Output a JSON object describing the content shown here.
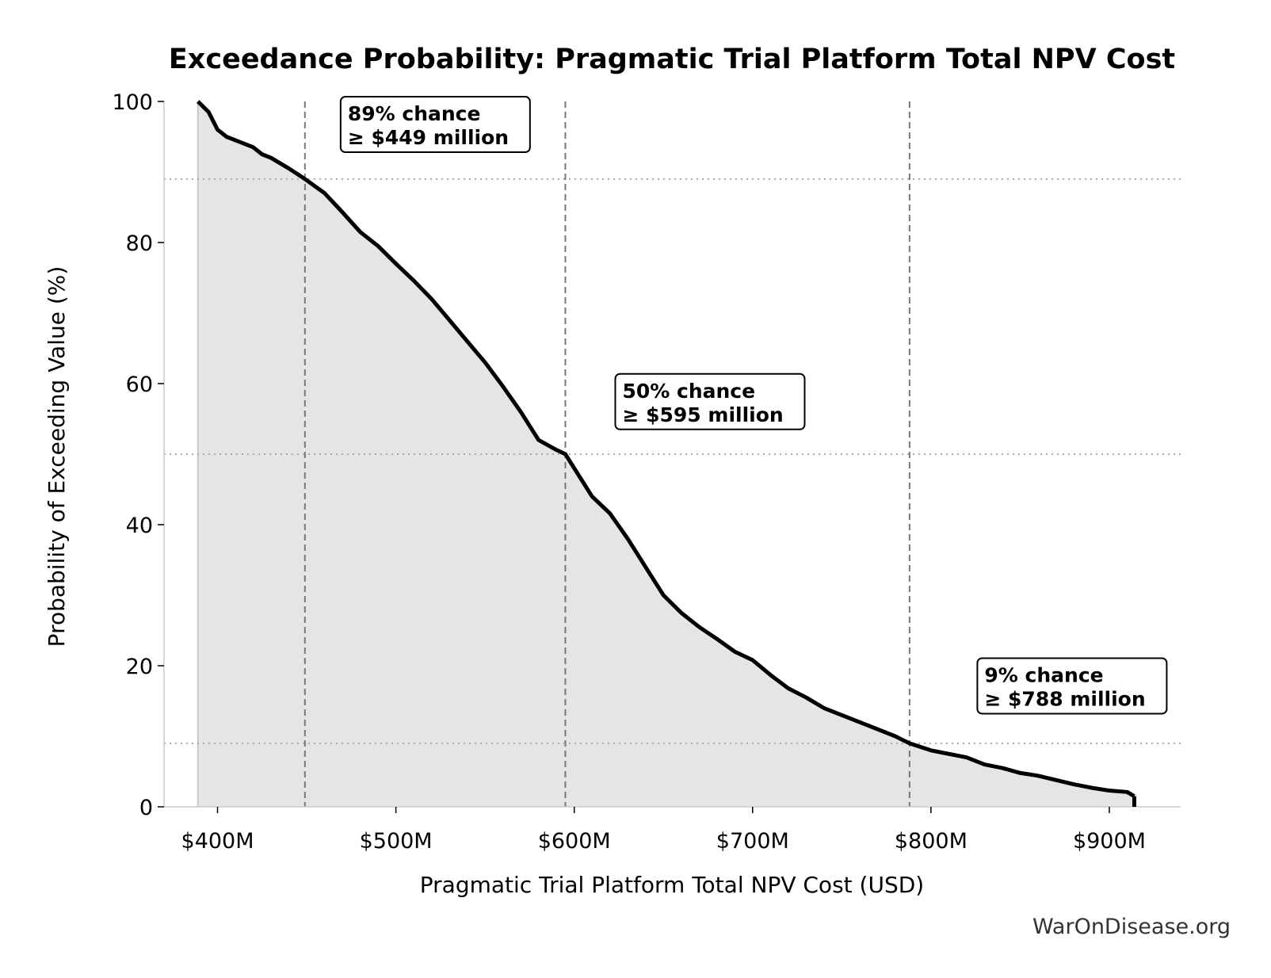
{
  "chart_data": {
    "type": "area",
    "title": "Exceedance Probability: Pragmatic Trial Platform Total NPV Cost",
    "xlabel": "Pragmatic Trial Platform Total NPV Cost (USD)",
    "ylabel": "Probability of Exceeding Value (%)",
    "xlim": [
      370,
      940
    ],
    "ylim": [
      0,
      100
    ],
    "x_ticks": [
      400,
      500,
      600,
      700,
      800,
      900
    ],
    "x_tick_labels": [
      "$400M",
      "$500M",
      "$600M",
      "$700M",
      "$800M",
      "$900M"
    ],
    "y_ticks": [
      0,
      20,
      40,
      60,
      80,
      100
    ],
    "y_tick_labels": [
      "0",
      "20",
      "40",
      "60",
      "80",
      "100"
    ],
    "grid": false,
    "colors": {
      "line": "#000000",
      "fill": "#e5e5e5",
      "ref_line": "#777777",
      "ref_dotted": "#aaaaaa"
    },
    "series": [
      {
        "x": [
          389,
          395,
          400,
          405,
          410,
          420,
          425,
          430,
          440,
          449,
          460,
          470,
          480,
          490,
          500,
          510,
          520,
          530,
          540,
          550,
          560,
          570,
          580,
          590,
          595,
          600,
          610,
          620,
          630,
          640,
          650,
          660,
          670,
          680,
          690,
          700,
          710,
          720,
          730,
          740,
          750,
          760,
          770,
          780,
          788,
          800,
          810,
          820,
          830,
          840,
          850,
          860,
          870,
          880,
          890,
          900,
          910,
          914
        ],
        "y": [
          100,
          98.5,
          96,
          95,
          94.5,
          93.5,
          92.5,
          92,
          90.5,
          89,
          87,
          84.3,
          81.5,
          79.5,
          77,
          74.6,
          72,
          69,
          66,
          63,
          59.6,
          56,
          52,
          50.6,
          50,
          48,
          44,
          41.6,
          38,
          34,
          30,
          27.5,
          25.5,
          23.8,
          22,
          20.8,
          18.7,
          16.8,
          15.5,
          14,
          13,
          12,
          11,
          10,
          9,
          8,
          7.5,
          7,
          6,
          5.5,
          4.8,
          4.4,
          3.8,
          3.2,
          2.7,
          2.3,
          2.1,
          1.5
        ]
      }
    ],
    "reference_lines": [
      {
        "x": 449,
        "y": 89
      },
      {
        "x": 595,
        "y": 50
      },
      {
        "x": 788,
        "y": 9
      }
    ],
    "annotations": [
      {
        "x": 473,
        "y": 97.3,
        "line1": "89% chance",
        "line2": "≥ $449 million"
      },
      {
        "x": 627,
        "y": 58.0,
        "line1": "50% chance",
        "line2": "≥ $595 million"
      },
      {
        "x": 830,
        "y": 17.7,
        "line1": "9% chance",
        "line2": "≥ $788 million"
      }
    ]
  },
  "footer": {
    "watermark": "WarOnDisease.org"
  }
}
